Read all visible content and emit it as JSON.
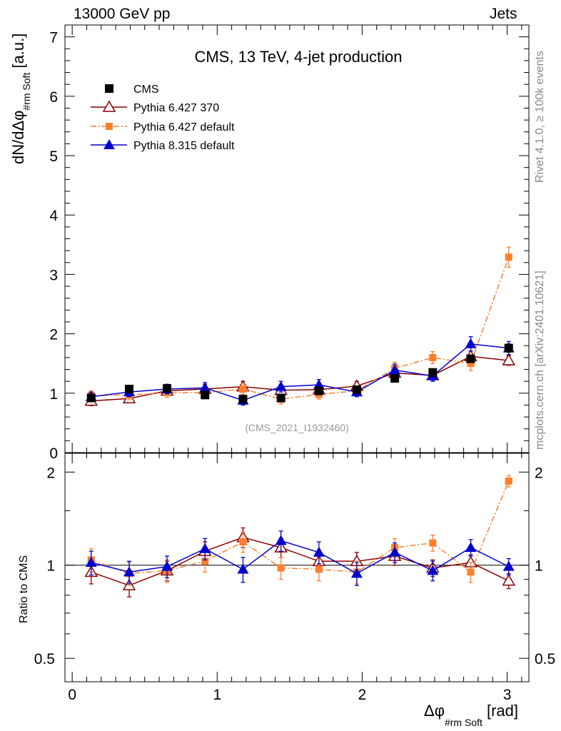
{
  "header": {
    "left": "13000 GeV pp",
    "right": "Jets"
  },
  "side_labels": {
    "rivet": "Rivet 4.1.0, ≥ 100k events",
    "site": "mcplots.cern.ch [arXiv:2401.10621]"
  },
  "chart_data": {
    "type": "scatter",
    "title": "CMS, 13 TeV, 4-jet production",
    "analysis_tag": "(CMS_2021_I1932460)",
    "xlabel": "Δφ",
    "xlabel_sub": "#rm Soft",
    "xlabel_unit": "[rad]",
    "ylabel": "dN/dΔφ",
    "ylabel_sub": "#rm Soft",
    "ylabel_unit": "[a.u.]",
    "ratio_ylabel": "Ratio to CMS",
    "xlim": [
      -0.05,
      3.15
    ],
    "ylim": [
      0,
      7.2
    ],
    "ratio_ylim": [
      0.42,
      2.3
    ],
    "x_ticks": [
      0,
      1,
      2,
      3
    ],
    "y_ticks": [
      0,
      1,
      2,
      3,
      4,
      5,
      6,
      7
    ],
    "ratio_ticks": [
      0.5,
      1,
      2
    ],
    "x": [
      0.131,
      0.393,
      0.654,
      0.916,
      1.178,
      1.44,
      1.702,
      1.963,
      2.225,
      2.487,
      2.749,
      3.011
    ],
    "series": [
      {
        "name": "CMS",
        "color": "#000000",
        "marker": "square",
        "line": "none",
        "values": [
          0.92,
          1.07,
          1.08,
          0.97,
          0.9,
          0.92,
          1.04,
          1.06,
          1.25,
          1.35,
          1.58,
          1.76
        ],
        "errors": [
          0.04,
          0.04,
          0.04,
          0.04,
          0.04,
          0.04,
          0.04,
          0.04,
          0.05,
          0.05,
          0.06,
          0.07
        ],
        "ratio": [
          1,
          1,
          1,
          1,
          1,
          1,
          1,
          1,
          1,
          1,
          1,
          1
        ],
        "ratio_errors": [
          0,
          0,
          0,
          0,
          0,
          0,
          0,
          0,
          0,
          0,
          0,
          0
        ]
      },
      {
        "name": "Pythia 6.427 370",
        "color": "#8b0000",
        "marker": "triangle-open",
        "line": "solid",
        "values": [
          0.87,
          0.91,
          1.04,
          1.07,
          1.11,
          1.05,
          1.06,
          1.12,
          1.34,
          1.3,
          1.62,
          1.55
        ],
        "errors": [
          0.08,
          0.07,
          0.07,
          0.08,
          0.09,
          0.08,
          0.08,
          0.08,
          0.09,
          0.08,
          0.09,
          0.08
        ],
        "ratio": [
          0.95,
          0.86,
          0.96,
          1.11,
          1.23,
          1.14,
          1.03,
          1.03,
          1.07,
          0.98,
          1.02,
          0.89
        ],
        "ratio_errors": [
          0.08,
          0.07,
          0.07,
          0.08,
          0.09,
          0.08,
          0.07,
          0.07,
          0.07,
          0.06,
          0.06,
          0.05
        ]
      },
      {
        "name": "Pythia 6.427 default",
        "color": "#ff7f2a",
        "marker": "square-small",
        "line": "dashdot",
        "values": [
          0.96,
          0.97,
          1.01,
          1.01,
          1.07,
          0.9,
          0.98,
          1.04,
          1.42,
          1.6,
          1.5,
          3.29
        ],
        "errors": [
          0.08,
          0.08,
          0.08,
          0.08,
          0.09,
          0.08,
          0.08,
          0.08,
          0.1,
          0.1,
          0.12,
          0.17
        ],
        "ratio": [
          1.04,
          0.94,
          0.96,
          1.03,
          1.19,
          0.98,
          0.97,
          0.95,
          1.14,
          1.18,
          0.95,
          1.87
        ],
        "ratio_errors": [
          0.09,
          0.08,
          0.08,
          0.08,
          0.09,
          0.08,
          0.08,
          0.08,
          0.08,
          0.07,
          0.07,
          0.08
        ]
      },
      {
        "name": "Pythia 8.315 default",
        "color": "#0000cc",
        "marker": "triangle-filled",
        "line": "solid",
        "values": [
          0.94,
          1.02,
          1.07,
          1.09,
          0.88,
          1.11,
          1.14,
          1.02,
          1.39,
          1.29,
          1.83,
          1.76
        ],
        "errors": [
          0.08,
          0.08,
          0.08,
          0.09,
          0.08,
          0.09,
          0.09,
          0.08,
          0.1,
          0.09,
          0.12,
          0.11
        ],
        "ratio": [
          1.02,
          0.95,
          0.99,
          1.13,
          0.97,
          1.2,
          1.1,
          0.94,
          1.1,
          0.96,
          1.14,
          0.99
        ],
        "ratio_errors": [
          0.09,
          0.08,
          0.08,
          0.09,
          0.09,
          0.09,
          0.09,
          0.08,
          0.08,
          0.07,
          0.07,
          0.06
        ]
      }
    ]
  }
}
